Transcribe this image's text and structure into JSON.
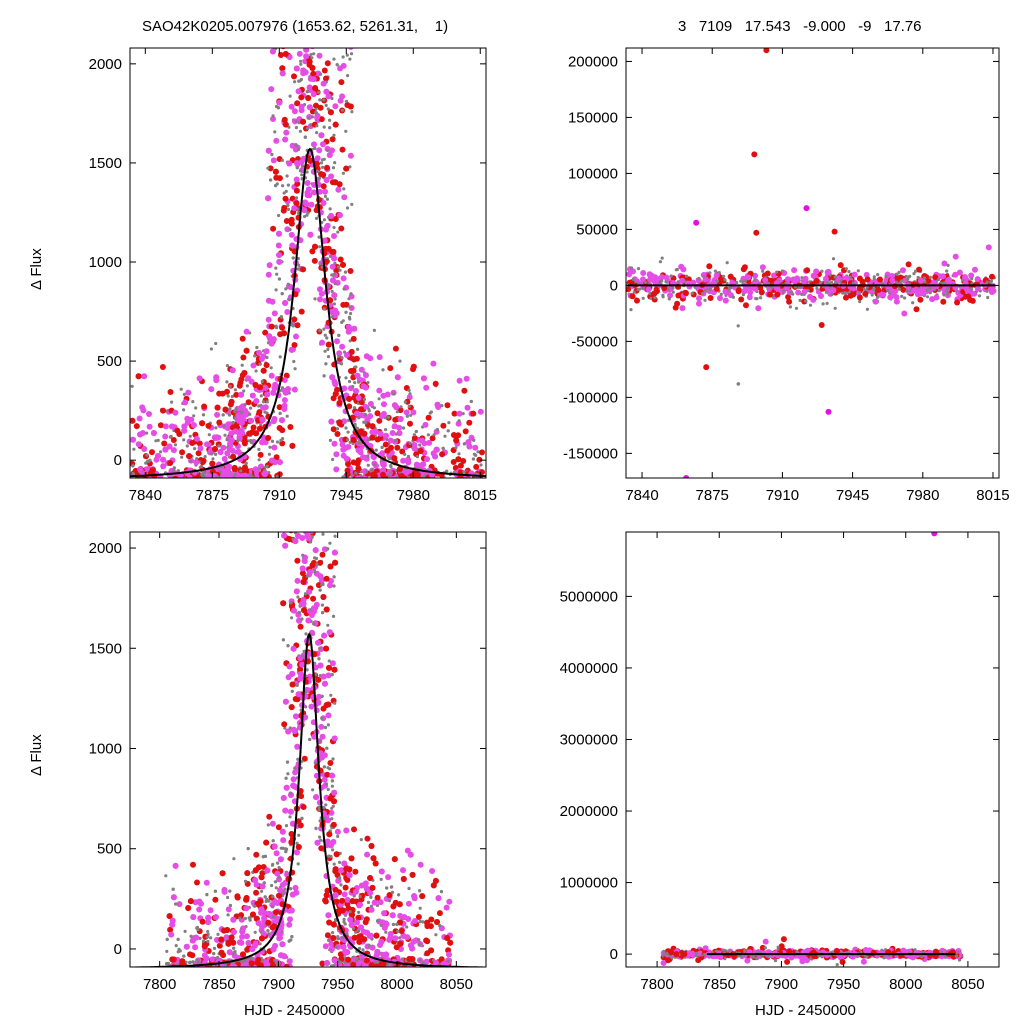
{
  "header": {
    "left_title": "SAO42K0205.007976 (1653.62, 5261.31,    1)",
    "right_title": "3   7109   17.543   -9.000   -9   17.76"
  },
  "chart_data": [
    {
      "type": "scatter",
      "panel": "top-left",
      "ylabel": "Δ Flux",
      "xlabel": "",
      "xlim": [
        7832,
        8018
      ],
      "ylim": [
        -90,
        2080
      ],
      "xticks": [
        "7840",
        "7875",
        "7910",
        "7945",
        "7980",
        "8015"
      ],
      "yticks": [
        "0",
        "500",
        "1000",
        "1500",
        "2000"
      ],
      "series": [
        {
          "color": "#808080",
          "marker": "small-dot"
        },
        {
          "color": "#e010e0",
          "marker": "dot"
        },
        {
          "color": "#e01010",
          "marker": "dot"
        }
      ],
      "model": {
        "color": "#000000",
        "shape": "lorentzian",
        "peak_x": 7926,
        "peak_y": 1570,
        "baseline": -100,
        "width": 10
      }
    },
    {
      "type": "scatter",
      "panel": "top-right",
      "ylabel": "",
      "xlabel": "",
      "xlim": [
        7832,
        8018
      ],
      "ylim": [
        -172000,
        212000
      ],
      "xticks": [
        "7840",
        "7875",
        "7910",
        "7945",
        "7980",
        "8015"
      ],
      "yticks": [
        "-150000",
        "-100000",
        "-50000",
        "0",
        "50000",
        "100000",
        "150000",
        "200000"
      ],
      "outliers": [
        {
          "x": 7902,
          "y": 210000,
          "color": "#e01010"
        },
        {
          "x": 7896,
          "y": 117000,
          "color": "#e01010"
        },
        {
          "x": 7872,
          "y": -73000,
          "color": "#e01010"
        },
        {
          "x": 7933,
          "y": -113000,
          "color": "#e010e0"
        },
        {
          "x": 7862,
          "y": -172000,
          "color": "#e010e0"
        },
        {
          "x": 7922,
          "y": 69000,
          "color": "#e010e0"
        },
        {
          "x": 7867,
          "y": 56000,
          "color": "#e010e0"
        },
        {
          "x": 7888,
          "y": -88000,
          "color": "#808080"
        },
        {
          "x": 7897,
          "y": 47000,
          "color": "#e01010"
        },
        {
          "x": 7936,
          "y": 48000,
          "color": "#e01010"
        }
      ],
      "model": {
        "color": "#000000",
        "shape": "flat",
        "value": 0
      }
    },
    {
      "type": "scatter",
      "panel": "bottom-left",
      "ylabel": "Δ Flux",
      "xlabel": "HJD - 2450000",
      "xlim": [
        7775,
        8075
      ],
      "ylim": [
        -90,
        2080
      ],
      "xticks": [
        "7800",
        "7850",
        "7900",
        "7950",
        "8000",
        "8050"
      ],
      "yticks": [
        "0",
        "500",
        "1000",
        "1500",
        "2000"
      ],
      "model": {
        "color": "#000000",
        "shape": "lorentzian",
        "peak_x": 7926,
        "peak_y": 1570,
        "baseline": -100,
        "width": 10
      }
    },
    {
      "type": "scatter",
      "panel": "bottom-right",
      "ylabel": "",
      "xlabel": "HJD - 2450000",
      "xlim": [
        7775,
        8075
      ],
      "ylim": [
        -180000,
        5900000
      ],
      "xticks": [
        "7800",
        "7850",
        "7900",
        "7950",
        "8000",
        "8050"
      ],
      "yticks": [
        "0",
        "1000000",
        "2000000",
        "3000000",
        "4000000",
        "5000000"
      ],
      "outliers": [
        {
          "x": 8023,
          "y": 5880000,
          "color": "#e010e0"
        },
        {
          "x": 7902,
          "y": 210000,
          "color": "#e01010"
        }
      ],
      "model": {
        "color": "#000000",
        "shape": "flat",
        "value": 0
      }
    }
  ]
}
